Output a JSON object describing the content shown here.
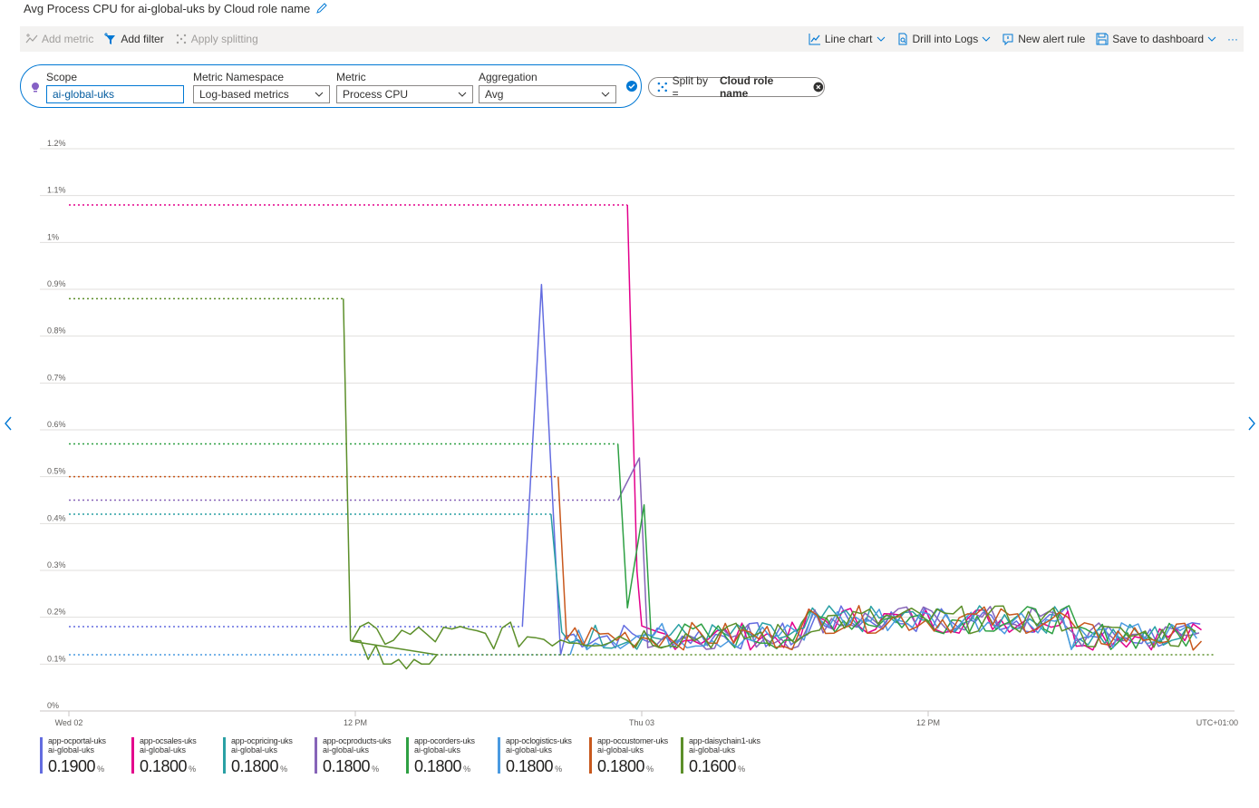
{
  "header": {
    "title": "Avg Process CPU for ai-global-uks by Cloud role name"
  },
  "toolbar": {
    "add_metric": "Add metric",
    "add_filter": "Add filter",
    "apply_splitting": "Apply splitting",
    "line_chart": "Line chart",
    "drill_into_logs": "Drill into Logs",
    "new_alert_rule": "New alert rule",
    "save_to_dashboard": "Save to dashboard",
    "more": "···"
  },
  "metric_selector": {
    "scope_label": "Scope",
    "scope_value": "ai-global-uks",
    "namespace_label": "Metric Namespace",
    "namespace_value": "Log-based metrics",
    "metric_label": "Metric",
    "metric_value": "Process CPU",
    "aggregation_label": "Aggregation",
    "aggregation_value": "Avg"
  },
  "split": {
    "prefix": "Split by =",
    "value": "Cloud role name"
  },
  "colors": {
    "accent": "#0078d4"
  },
  "chart_data": {
    "type": "line",
    "title": "",
    "y_ticks": [
      "0%",
      "0.1%",
      "0.2%",
      "0.3%",
      "0.4%",
      "0.5%",
      "0.6%",
      "0.7%",
      "0.8%",
      "0.9%",
      "1%",
      "1.1%",
      "1.2%"
    ],
    "ylim": [
      0,
      1.2
    ],
    "x_ticks": [
      "Wed 02",
      "12 PM",
      "Thu 03",
      "12 PM"
    ],
    "timezone_label": "UTC+01:00",
    "time_range_hours": [
      0,
      48
    ],
    "grid": true,
    "series": [
      {
        "name": "app-ocportal-uks",
        "scope": "ai-global-uks",
        "color": "#636ce0",
        "summary": "0.1900",
        "flat_value": 0.18,
        "flat_end": 19,
        "spike_x": 19.8,
        "spike_value": 0.91,
        "start": 19.2
      },
      {
        "name": "app-ocsales-uks",
        "scope": "ai-global-uks",
        "color": "#e3008c",
        "summary": "0.1800",
        "flat_value": 1.08,
        "flat_end": 23.4,
        "spike_x": 23.5,
        "spike_value": 1.08,
        "start": 23.4
      },
      {
        "name": "app-ocpricing-uks",
        "scope": "ai-global-uks",
        "color": "#2aa0a4",
        "summary": "0.1800",
        "flat_value": 0.42,
        "flat_end": 20.2,
        "spike_x": 20.3,
        "spike_value": 0.42,
        "start": 20.2
      },
      {
        "name": "app-ocproducts-uks",
        "scope": "ai-global-uks",
        "color": "#8764b8",
        "summary": "0.1800",
        "flat_value": 0.45,
        "flat_end": 23.0,
        "spike_x": 23.9,
        "spike_value": 0.54,
        "start": 23.0
      },
      {
        "name": "app-ocorders-uks",
        "scope": "ai-global-uks",
        "color": "#2ea043",
        "summary": "0.1800",
        "flat_value": 0.57,
        "flat_end": 23.0,
        "spike_x": 23.0,
        "spike_value": 0.57,
        "start": 23.0
      },
      {
        "name": "app-oclogistics-uks",
        "scope": "ai-global-uks",
        "color": "#4a9ae0",
        "summary": "0.1800",
        "flat_value": 0.12,
        "flat_end": 21.0,
        "spike_x": 21.0,
        "spike_value": 0.12,
        "start": 21.0
      },
      {
        "name": "app-occustomer-uks",
        "scope": "ai-global-uks",
        "color": "#c8581d",
        "summary": "0.1800",
        "flat_value": 0.5,
        "flat_end": 20.5,
        "spike_x": 20.5,
        "spike_value": 0.5,
        "start": 20.5
      },
      {
        "name": "app-daisychain1-uks",
        "scope": "ai-global-uks",
        "color": "#5c8f2a",
        "summary": "0.1600",
        "flat_value": 0.88,
        "flat_end": 11.5,
        "spike_x": 11.5,
        "spike_value": 0.88,
        "start": 11.5
      }
    ],
    "unit": "%"
  }
}
